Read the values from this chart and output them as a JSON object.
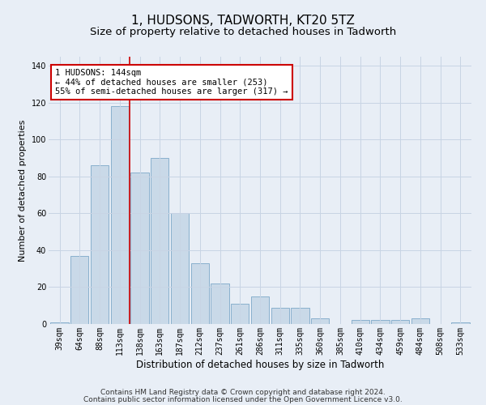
{
  "title": "1, HUDSONS, TADWORTH, KT20 5TZ",
  "subtitle": "Size of property relative to detached houses in Tadworth",
  "xlabel": "Distribution of detached houses by size in Tadworth",
  "ylabel": "Number of detached properties",
  "categories": [
    "39sqm",
    "64sqm",
    "88sqm",
    "113sqm",
    "138sqm",
    "163sqm",
    "187sqm",
    "212sqm",
    "237sqm",
    "261sqm",
    "286sqm",
    "311sqm",
    "335sqm",
    "360sqm",
    "385sqm",
    "410sqm",
    "434sqm",
    "459sqm",
    "484sqm",
    "508sqm",
    "533sqm"
  ],
  "values": [
    1,
    37,
    86,
    118,
    82,
    90,
    60,
    33,
    22,
    11,
    15,
    9,
    9,
    3,
    0,
    2,
    2,
    2,
    3,
    0,
    1
  ],
  "bar_color": "#c9d9e8",
  "bar_edge_color": "#7da8c8",
  "grid_color": "#c8d4e4",
  "background_color": "#e8eef6",
  "vline_x": 3.5,
  "vline_color": "#cc0000",
  "annotation_text": "1 HUDSONS: 144sqm\n← 44% of detached houses are smaller (253)\n55% of semi-detached houses are larger (317) →",
  "annotation_box_facecolor": "#ffffff",
  "annotation_box_edgecolor": "#cc0000",
  "footnote_line1": "Contains HM Land Registry data © Crown copyright and database right 2024.",
  "footnote_line2": "Contains public sector information licensed under the Open Government Licence v3.0.",
  "ylim": [
    0,
    145
  ],
  "yticks": [
    0,
    20,
    40,
    60,
    80,
    100,
    120,
    140
  ],
  "title_fontsize": 11,
  "subtitle_fontsize": 9.5,
  "xlabel_fontsize": 8.5,
  "ylabel_fontsize": 8,
  "tick_fontsize": 7,
  "annotation_fontsize": 7.5,
  "footnote_fontsize": 6.5
}
